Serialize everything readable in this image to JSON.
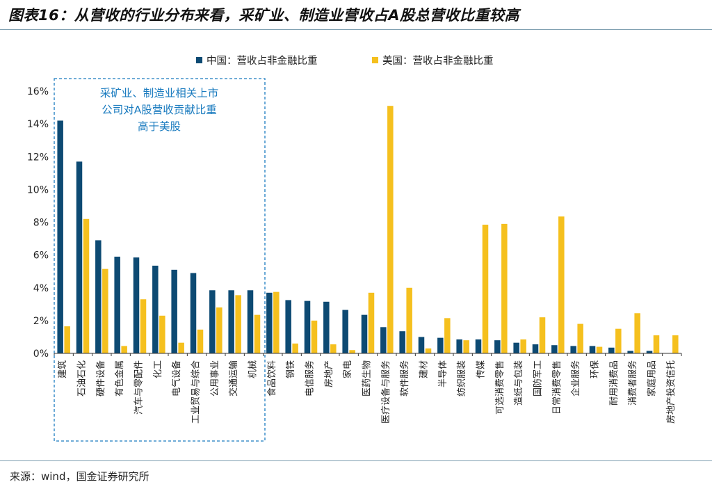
{
  "header": {
    "title": "图表16：从营收的行业分布来看，采矿业、制造业营收占A股总营收比重较高"
  },
  "footer": {
    "source": "来源：wind，国金证券研究所"
  },
  "colors": {
    "china": "#0d4a73",
    "usa": "#f5c01e",
    "annotation": "#1a7bbf",
    "axis": "#333333"
  },
  "annotation": {
    "lines": [
      "采矿业、制造业相关上市",
      "公司对A股营收贡献比重",
      "高于美股"
    ]
  },
  "chart_data": {
    "type": "bar",
    "legend_position": "top-center",
    "grid": false,
    "ylim": [
      0,
      16
    ],
    "yticks": [
      0,
      2,
      4,
      6,
      8,
      10,
      12,
      14,
      16
    ],
    "ytick_labels": [
      "0%",
      "2%",
      "4%",
      "6%",
      "8%",
      "10%",
      "12%",
      "14%",
      "16%"
    ],
    "categories": [
      "建筑",
      "石油石化",
      "硬件设备",
      "有色金属",
      "汽车与零配件",
      "化工",
      "电气设备",
      "工业贸易与综合",
      "公用事业",
      "交通运输",
      "机械",
      "食品饮料",
      "钢铁",
      "电信服务",
      "房地产",
      "家电",
      "医药生物",
      "医疗设备与服务",
      "软件服务",
      "建材",
      "半导体",
      "纺织服装",
      "传媒",
      "可选消费零售",
      "造纸与包装",
      "国防军工",
      "日常消费零售",
      "企业服务",
      "环保",
      "耐用消费品",
      "消费者服务",
      "家庭用品",
      "房地产投资信托"
    ],
    "series": [
      {
        "name": "中国：营收占非金融比重",
        "values": [
          14.2,
          11.7,
          6.9,
          5.9,
          5.85,
          5.35,
          5.1,
          4.9,
          3.85,
          3.85,
          3.85,
          3.7,
          3.25,
          3.2,
          3.15,
          2.65,
          2.35,
          1.6,
          1.35,
          1.0,
          0.95,
          0.85,
          0.85,
          0.8,
          0.65,
          0.55,
          0.5,
          0.45,
          0.45,
          0.35,
          0.15,
          0.15,
          0.0
        ]
      },
      {
        "name": "美国：营收占非金融比重",
        "values": [
          1.65,
          8.2,
          5.15,
          0.45,
          3.3,
          2.3,
          0.65,
          1.45,
          2.8,
          3.55,
          2.35,
          3.75,
          0.6,
          2.0,
          0.55,
          0.2,
          3.7,
          15.1,
          4.0,
          0.3,
          2.15,
          0.8,
          7.85,
          7.9,
          0.85,
          2.2,
          8.35,
          1.8,
          0.4,
          1.5,
          2.45,
          1.1,
          1.1
        ]
      }
    ]
  }
}
